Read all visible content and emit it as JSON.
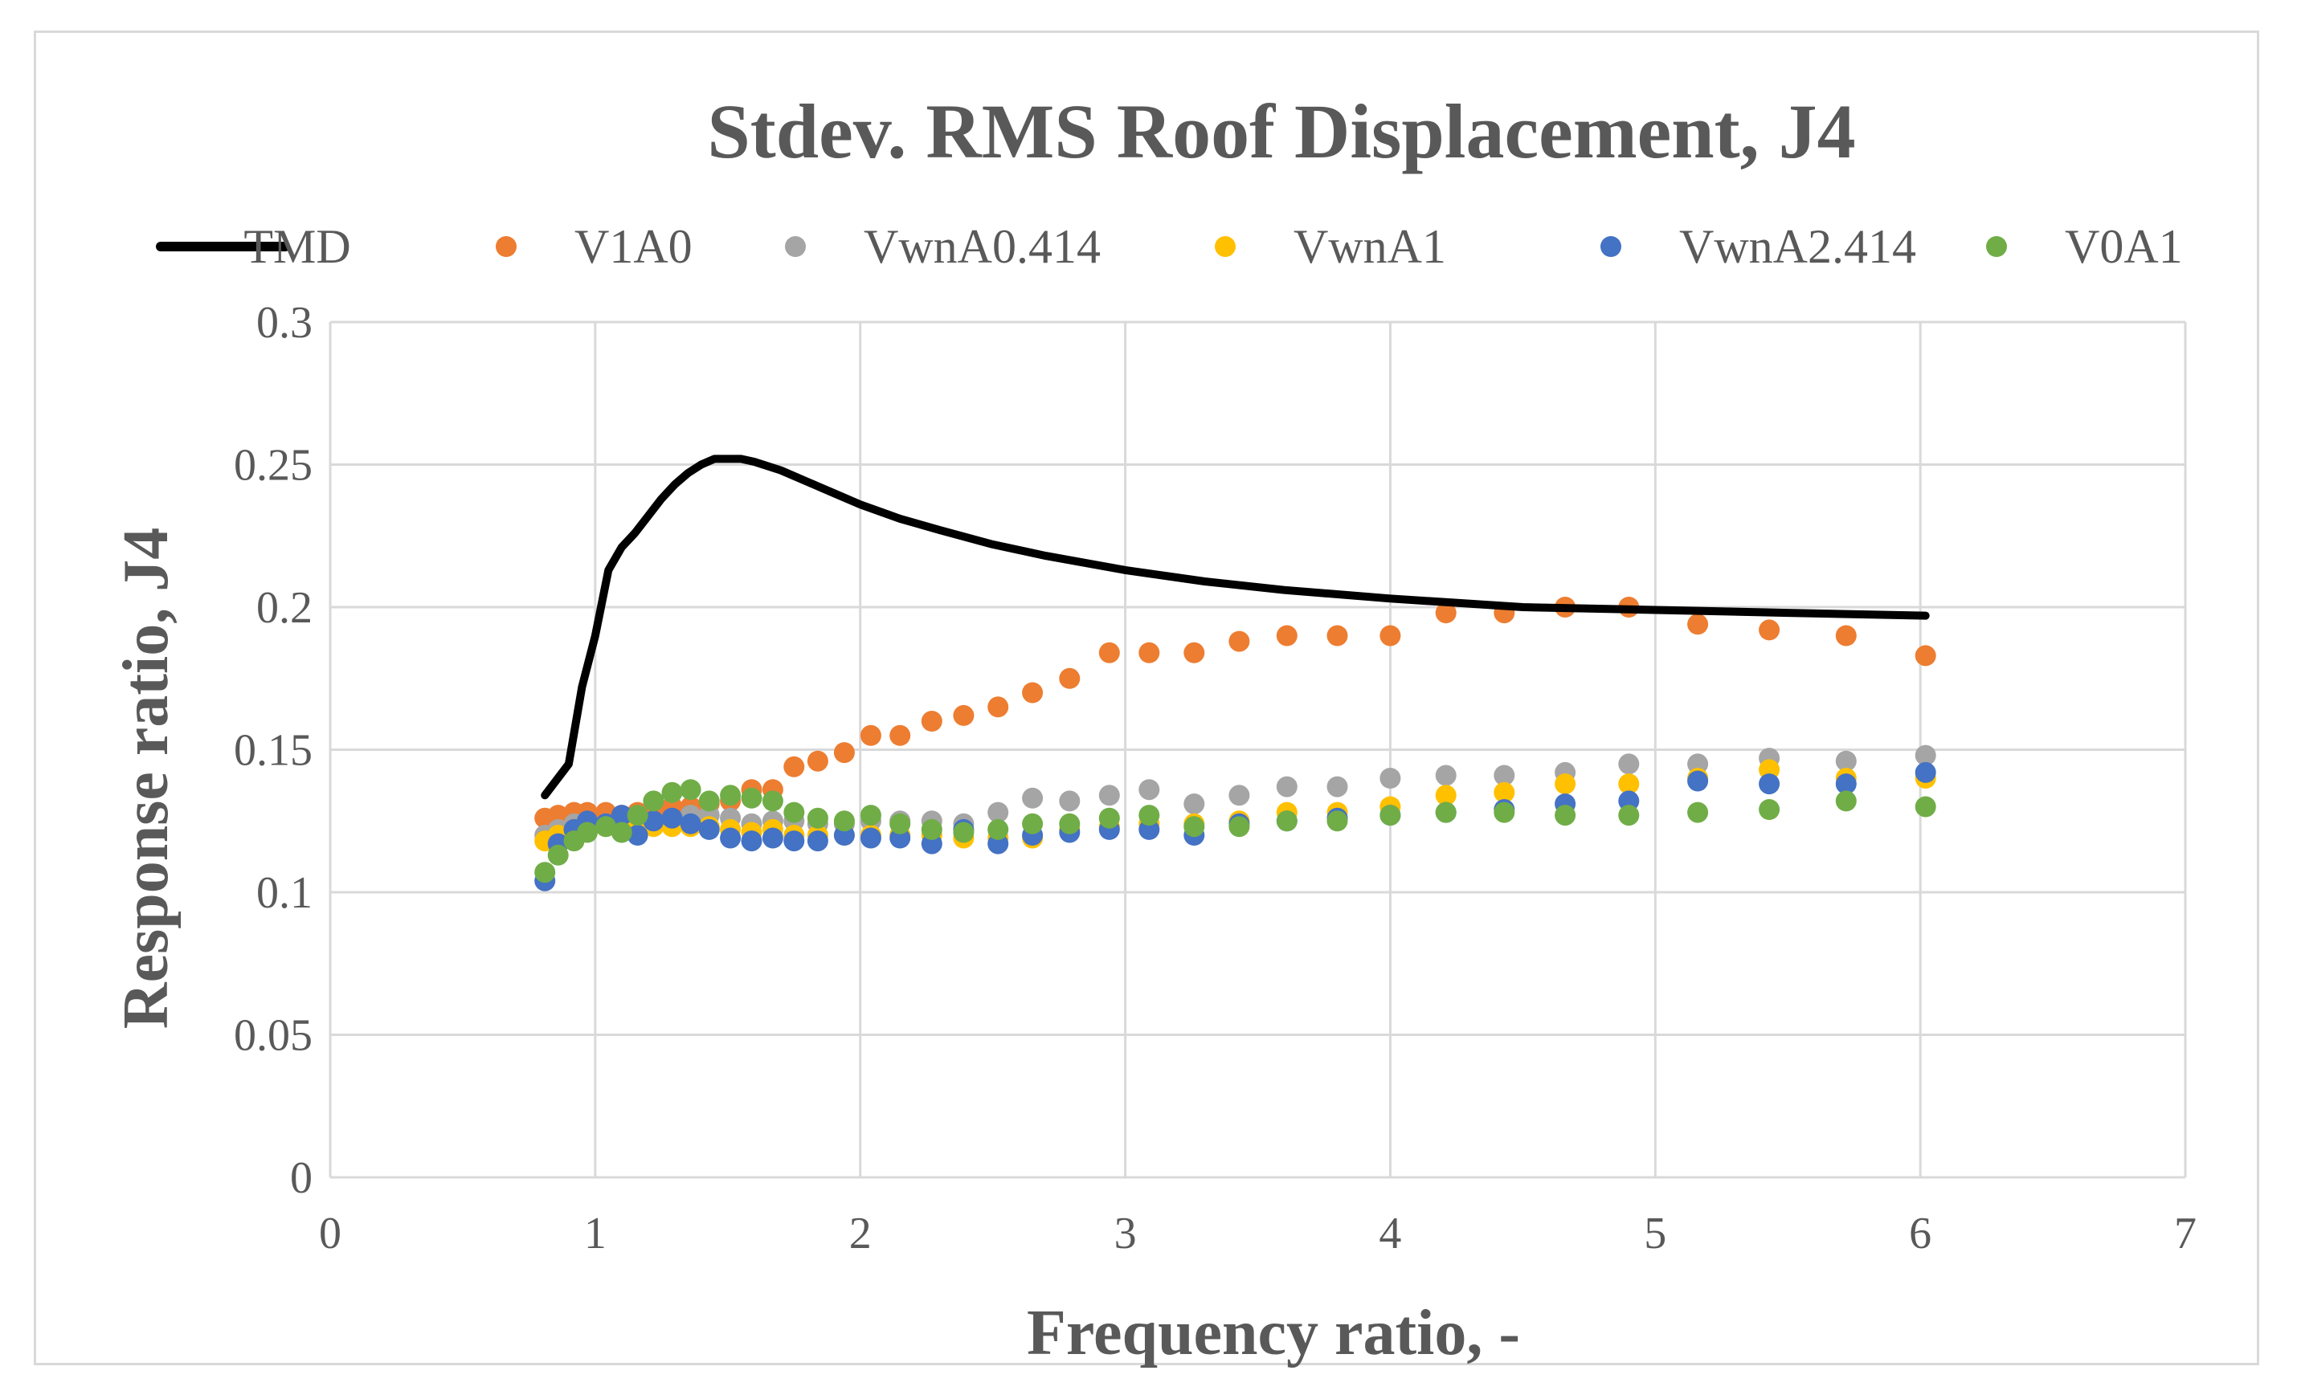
{
  "chart_data": {
    "type": "scatter",
    "title": "Stdev. RMS Roof Displacement, J4",
    "xlabel": "Frequency ratio, -",
    "ylabel": "Response ratio, J4",
    "xlim": [
      0,
      7
    ],
    "ylim": [
      0,
      0.3
    ],
    "xticks": [
      0,
      1,
      2,
      3,
      4,
      5,
      6,
      7
    ],
    "yticks": [
      0,
      0.05,
      0.1,
      0.15,
      0.2,
      0.25,
      0.3
    ],
    "grid": true,
    "legend_position": "top",
    "series": [
      {
        "name": "TMD",
        "style": "line",
        "color": "#000000",
        "x": [
          0.81,
          0.9,
          0.95,
          1.0,
          1.05,
          1.1,
          1.15,
          1.2,
          1.25,
          1.3,
          1.35,
          1.4,
          1.45,
          1.5,
          1.55,
          1.6,
          1.7,
          1.8,
          1.9,
          2.0,
          2.15,
          2.3,
          2.5,
          2.7,
          3.0,
          3.3,
          3.6,
          4.0,
          4.5,
          5.0,
          5.5,
          6.02
        ],
        "y": [
          0.134,
          0.145,
          0.172,
          0.19,
          0.213,
          0.221,
          0.226,
          0.232,
          0.238,
          0.243,
          0.247,
          0.25,
          0.252,
          0.252,
          0.252,
          0.251,
          0.248,
          0.244,
          0.24,
          0.236,
          0.231,
          0.227,
          0.222,
          0.218,
          0.213,
          0.209,
          0.206,
          0.203,
          0.2,
          0.199,
          0.198,
          0.197
        ]
      },
      {
        "name": "V1A0",
        "style": "points",
        "color": "#ed7d31",
        "x": [
          0.81,
          0.86,
          0.92,
          0.97,
          1.04,
          1.1,
          1.16,
          1.22,
          1.29,
          1.36,
          1.43,
          1.51,
          1.59,
          1.67,
          1.75,
          1.84,
          1.94,
          2.04,
          2.15,
          2.27,
          2.39,
          2.52,
          2.65,
          2.79,
          2.94,
          3.09,
          3.26,
          3.43,
          3.61,
          3.8,
          4.0,
          4.21,
          4.43,
          4.66,
          4.9,
          5.16,
          5.43,
          5.72,
          6.02
        ],
        "y": [
          0.126,
          0.127,
          0.128,
          0.128,
          0.128,
          0.127,
          0.128,
          0.129,
          0.13,
          0.13,
          0.131,
          0.132,
          0.136,
          0.136,
          0.144,
          0.146,
          0.149,
          0.155,
          0.155,
          0.16,
          0.162,
          0.165,
          0.17,
          0.175,
          0.184,
          0.184,
          0.184,
          0.188,
          0.19,
          0.19,
          0.19,
          0.198,
          0.198,
          0.2,
          0.2,
          0.194,
          0.192,
          0.19,
          0.183
        ]
      },
      {
        "name": "VwnA0.414",
        "style": "points",
        "color": "#a5a5a5",
        "x": [
          0.81,
          0.86,
          0.92,
          0.97,
          1.04,
          1.1,
          1.16,
          1.22,
          1.29,
          1.36,
          1.43,
          1.51,
          1.59,
          1.67,
          1.75,
          1.84,
          1.94,
          2.04,
          2.15,
          2.27,
          2.39,
          2.52,
          2.65,
          2.79,
          2.94,
          3.09,
          3.26,
          3.43,
          3.61,
          3.8,
          4.0,
          4.21,
          4.43,
          4.66,
          4.9,
          5.16,
          5.43,
          5.72,
          6.02
        ],
        "y": [
          0.12,
          0.122,
          0.124,
          0.124,
          0.124,
          0.124,
          0.125,
          0.125,
          0.125,
          0.127,
          0.127,
          0.126,
          0.124,
          0.125,
          0.125,
          0.124,
          0.124,
          0.125,
          0.125,
          0.125,
          0.124,
          0.128,
          0.133,
          0.132,
          0.134,
          0.136,
          0.131,
          0.134,
          0.137,
          0.137,
          0.14,
          0.141,
          0.141,
          0.142,
          0.145,
          0.145,
          0.147,
          0.146,
          0.148
        ]
      },
      {
        "name": "VwnA1",
        "style": "points",
        "color": "#ffc000",
        "x": [
          0.81,
          0.86,
          0.92,
          0.97,
          1.04,
          1.1,
          1.16,
          1.22,
          1.29,
          1.36,
          1.43,
          1.51,
          1.59,
          1.67,
          1.75,
          1.84,
          1.94,
          2.04,
          2.15,
          2.27,
          2.39,
          2.52,
          2.65,
          2.79,
          2.94,
          3.09,
          3.26,
          3.43,
          3.61,
          3.8,
          4.0,
          4.21,
          4.43,
          4.66,
          4.9,
          5.16,
          5.43,
          5.72,
          6.02
        ],
        "y": [
          0.118,
          0.12,
          0.122,
          0.122,
          0.123,
          0.123,
          0.123,
          0.123,
          0.123,
          0.123,
          0.123,
          0.122,
          0.121,
          0.122,
          0.12,
          0.12,
          0.12,
          0.12,
          0.12,
          0.12,
          0.119,
          0.119,
          0.119,
          0.122,
          0.123,
          0.124,
          0.124,
          0.125,
          0.128,
          0.128,
          0.13,
          0.134,
          0.135,
          0.138,
          0.138,
          0.14,
          0.143,
          0.14,
          0.14
        ]
      },
      {
        "name": "VwnA2.414",
        "style": "points",
        "color": "#4472c4",
        "x": [
          0.81,
          0.86,
          0.92,
          0.97,
          1.04,
          1.1,
          1.16,
          1.22,
          1.29,
          1.36,
          1.43,
          1.51,
          1.59,
          1.67,
          1.75,
          1.84,
          1.94,
          2.04,
          2.15,
          2.27,
          2.39,
          2.52,
          2.65,
          2.79,
          2.94,
          3.09,
          3.26,
          3.43,
          3.61,
          3.8,
          4.0,
          4.21,
          4.43,
          4.66,
          4.9,
          5.16,
          5.43,
          5.72,
          6.02
        ],
        "y": [
          0.104,
          0.117,
          0.122,
          0.125,
          0.124,
          0.127,
          0.12,
          0.125,
          0.126,
          0.124,
          0.122,
          0.119,
          0.118,
          0.119,
          0.118,
          0.118,
          0.12,
          0.119,
          0.119,
          0.117,
          0.122,
          0.117,
          0.12,
          0.121,
          0.122,
          0.122,
          0.12,
          0.124,
          0.125,
          0.126,
          0.127,
          0.128,
          0.129,
          0.131,
          0.132,
          0.139,
          0.138,
          0.138,
          0.142
        ]
      },
      {
        "name": "V0A1",
        "style": "points",
        "color": "#70ad47",
        "x": [
          0.81,
          0.86,
          0.92,
          0.97,
          1.04,
          1.1,
          1.16,
          1.22,
          1.29,
          1.36,
          1.43,
          1.51,
          1.59,
          1.67,
          1.75,
          1.84,
          1.94,
          2.04,
          2.15,
          2.27,
          2.39,
          2.52,
          2.65,
          2.79,
          2.94,
          3.09,
          3.26,
          3.43,
          3.61,
          3.8,
          4.0,
          4.21,
          4.43,
          4.66,
          4.9,
          5.16,
          5.43,
          5.72,
          6.02
        ],
        "y": [
          0.107,
          0.113,
          0.118,
          0.121,
          0.123,
          0.121,
          0.127,
          0.132,
          0.135,
          0.136,
          0.132,
          0.134,
          0.133,
          0.132,
          0.128,
          0.126,
          0.125,
          0.127,
          0.124,
          0.122,
          0.121,
          0.122,
          0.124,
          0.124,
          0.126,
          0.127,
          0.123,
          0.123,
          0.125,
          0.125,
          0.127,
          0.128,
          0.128,
          0.127,
          0.127,
          0.128,
          0.129,
          0.132,
          0.13
        ]
      }
    ]
  }
}
